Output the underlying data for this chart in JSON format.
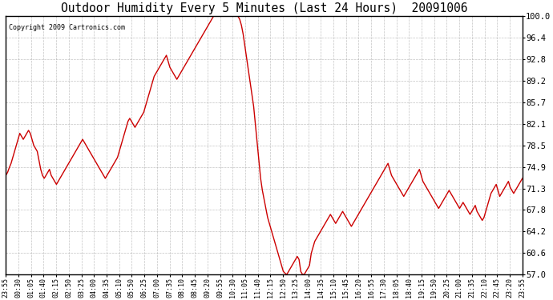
{
  "title": "Outdoor Humidity Every 5 Minutes (Last 24 Hours)  20091006",
  "copyright": "Copyright 2009 Cartronics.com",
  "line_color": "#cc0000",
  "bg_color": "#ffffff",
  "grid_color": "#aaaaaa",
  "ylim": [
    57.0,
    100.0
  ],
  "yticks": [
    57.0,
    60.6,
    64.2,
    67.8,
    71.3,
    74.9,
    78.5,
    82.1,
    85.7,
    89.2,
    92.8,
    96.4,
    100.0
  ],
  "x_labels": [
    "23:55",
    "00:30",
    "01:05",
    "01:40",
    "02:15",
    "02:50",
    "03:25",
    "04:00",
    "04:35",
    "05:10",
    "05:50",
    "06:25",
    "07:00",
    "07:35",
    "08:10",
    "08:45",
    "09:20",
    "09:55",
    "10:30",
    "11:05",
    "11:40",
    "12:15",
    "12:50",
    "13:25",
    "14:00",
    "14:35",
    "15:10",
    "15:45",
    "16:20",
    "16:55",
    "17:30",
    "18:05",
    "18:40",
    "19:15",
    "19:50",
    "20:25",
    "21:00",
    "21:35",
    "22:10",
    "22:45",
    "23:20",
    "23:55"
  ],
  "humidity": [
    73.5,
    74.0,
    74.8,
    75.5,
    76.5,
    77.5,
    78.5,
    79.5,
    80.5,
    80.0,
    79.5,
    80.0,
    80.5,
    81.0,
    80.5,
    79.5,
    78.5,
    78.0,
    77.5,
    76.0,
    74.5,
    73.5,
    73.0,
    73.5,
    74.0,
    74.5,
    73.5,
    73.0,
    72.5,
    72.0,
    72.5,
    73.0,
    73.5,
    74.0,
    74.5,
    75.0,
    75.5,
    76.0,
    76.5,
    77.0,
    77.5,
    78.0,
    78.5,
    79.0,
    79.5,
    79.0,
    78.5,
    78.0,
    77.5,
    77.0,
    76.5,
    76.0,
    75.5,
    75.0,
    74.5,
    74.0,
    73.5,
    73.0,
    73.5,
    74.0,
    74.5,
    75.0,
    75.5,
    76.0,
    76.5,
    77.5,
    78.5,
    79.5,
    80.5,
    81.5,
    82.5,
    83.0,
    82.5,
    82.0,
    81.5,
    82.0,
    82.5,
    83.0,
    83.5,
    84.0,
    85.0,
    86.0,
    87.0,
    88.0,
    89.0,
    90.0,
    90.5,
    91.0,
    91.5,
    92.0,
    92.5,
    93.0,
    93.5,
    92.5,
    91.5,
    91.0,
    90.5,
    90.0,
    89.5,
    90.0,
    90.5,
    91.0,
    91.5,
    92.0,
    92.5,
    93.0,
    93.5,
    94.0,
    94.5,
    95.0,
    95.5,
    96.0,
    96.5,
    97.0,
    97.5,
    98.0,
    98.5,
    99.0,
    99.5,
    100.0,
    100.0,
    100.0,
    100.0,
    100.0,
    100.0,
    100.0,
    100.0,
    100.0,
    100.0,
    100.0,
    100.0,
    100.0,
    100.0,
    100.0,
    99.5,
    98.5,
    97.0,
    95.0,
    93.0,
    91.0,
    89.0,
    87.0,
    85.0,
    82.0,
    79.0,
    76.0,
    73.0,
    71.0,
    69.5,
    68.0,
    66.5,
    65.5,
    64.5,
    63.5,
    62.5,
    61.5,
    60.5,
    59.5,
    58.5,
    57.5,
    57.2,
    57.0,
    57.5,
    58.0,
    58.5,
    59.0,
    59.5,
    60.0,
    59.5,
    57.5,
    57.0,
    57.0,
    57.5,
    58.0,
    58.5,
    60.5,
    61.5,
    62.5,
    63.0,
    63.5,
    64.0,
    64.5,
    65.0,
    65.5,
    66.0,
    66.5,
    67.0,
    66.5,
    66.0,
    65.5,
    66.0,
    66.5,
    67.0,
    67.5,
    67.0,
    66.5,
    66.0,
    65.5,
    65.0,
    65.5,
    66.0,
    66.5,
    67.0,
    67.5,
    68.0,
    68.5,
    69.0,
    69.5,
    70.0,
    70.5,
    71.0,
    71.5,
    72.0,
    72.5,
    73.0,
    73.5,
    74.0,
    74.5,
    75.0,
    75.5,
    74.5,
    73.5,
    73.0,
    72.5,
    72.0,
    71.5,
    71.0,
    70.5,
    70.0,
    70.5,
    71.0,
    71.5,
    72.0,
    72.5,
    73.0,
    73.5,
    74.0,
    74.5,
    73.5,
    72.5,
    72.0,
    71.5,
    71.0,
    70.5,
    70.0,
    69.5,
    69.0,
    68.5,
    68.0,
    68.5,
    69.0,
    69.5,
    70.0,
    70.5,
    71.0,
    70.5,
    70.0,
    69.5,
    69.0,
    68.5,
    68.0,
    68.5,
    69.0,
    68.5,
    68.0,
    67.5,
    67.0,
    67.5,
    68.0,
    68.5,
    67.5,
    67.0,
    66.5,
    66.0,
    66.5,
    67.5,
    68.5,
    69.5,
    70.5,
    71.0,
    71.5,
    72.0,
    71.0,
    70.0,
    70.5,
    71.0,
    71.5,
    72.0,
    72.5,
    71.5,
    71.0,
    70.5,
    71.0,
    71.5,
    72.0,
    72.5,
    73.0
  ]
}
